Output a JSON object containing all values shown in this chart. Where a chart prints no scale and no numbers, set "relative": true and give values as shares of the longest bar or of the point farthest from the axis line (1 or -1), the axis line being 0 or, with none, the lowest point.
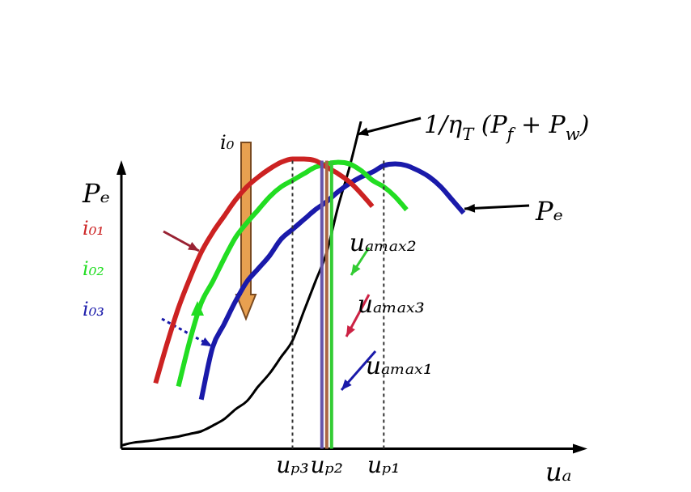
{
  "chart_data": {
    "type": "line",
    "relative": true,
    "xlabel": "uₐ",
    "ylabel": "Pₑ",
    "categories": [
      null,
      null,
      null,
      null,
      null,
      null,
      null,
      null,
      null,
      null,
      null,
      null,
      null,
      null,
      null,
      "uₚ₃",
      null,
      null,
      "uₚ₂",
      null,
      null,
      null,
      null,
      "uₚ₁",
      null,
      null,
      null,
      null,
      null,
      null,
      null,
      null,
      null,
      null,
      null,
      null,
      null,
      null,
      null,
      null,
      null
    ],
    "series": [
      {
        "name": "i₀₁",
        "color": "#cc2222",
        "values": [
          null,
          null,
          null,
          0.2,
          0.32,
          0.43,
          0.52,
          0.6,
          0.66,
          0.71,
          0.76,
          0.8,
          0.83,
          0.855,
          0.875,
          0.885,
          0.885,
          0.88,
          0.86,
          0.84,
          0.815,
          0.78,
          0.74,
          null,
          null,
          null,
          null,
          null,
          null,
          null,
          null,
          null,
          null,
          null,
          null,
          null,
          null,
          null,
          null,
          null,
          null
        ]
      },
      {
        "name": "i₀₂",
        "color": "#22dd22",
        "values": [
          null,
          null,
          null,
          null,
          null,
          0.19,
          0.33,
          0.445,
          0.51,
          0.58,
          0.645,
          0.69,
          0.73,
          0.77,
          0.8,
          0.82,
          0.84,
          0.86,
          0.87,
          0.875,
          0.87,
          0.85,
          0.82,
          0.8,
          0.77,
          0.73,
          null,
          null,
          null,
          null,
          null,
          null,
          null,
          null,
          null,
          null,
          null,
          null,
          null,
          null,
          null
        ]
      },
      {
        "name": "i₀₃",
        "color": "#1a1aaa",
        "values": [
          null,
          null,
          null,
          null,
          null,
          null,
          null,
          0.15,
          0.31,
          0.38,
          0.45,
          0.51,
          0.55,
          0.59,
          0.64,
          0.67,
          0.7,
          0.73,
          0.755,
          0.785,
          0.81,
          0.83,
          0.845,
          0.865,
          0.87,
          0.865,
          0.85,
          0.83,
          0.8,
          0.76,
          0.72,
          null,
          null,
          null,
          null,
          null,
          null,
          null,
          null,
          null,
          null
        ]
      },
      {
        "color": "#000000",
        "values": [
          0.01,
          0.018,
          0.022,
          0.026,
          0.032,
          0.037,
          0.045,
          0.053,
          0.07,
          0.09,
          0.12,
          0.145,
          0.19,
          0.23,
          0.28,
          0.33,
          0.42,
          0.51,
          0.6,
          0.74,
          0.86,
          1.0,
          null,
          null,
          null,
          null,
          null,
          null,
          null,
          null,
          null,
          null,
          null,
          null,
          null,
          null,
          null,
          null,
          null,
          null,
          null
        ]
      }
    ],
    "ref_lines": [
      {
        "axis": "x",
        "value": "uₚ₃",
        "line_style": "dotted",
        "color": "#333333"
      },
      {
        "axis": "x",
        "value": "uₚ₁",
        "line_style": "dotted",
        "color": "#333333"
      },
      {
        "axis": "x",
        "value": "uₚ₂",
        "label": "uₐₘₐₓ₂",
        "color": "#33cc33",
        "line_style": "solid"
      },
      {
        "axis": "x",
        "value": "uₚ₂",
        "label": "uₐₘₐₓ₃",
        "color": "#aa6644",
        "line_style": "solid"
      },
      {
        "axis": "x",
        "value": "uₚ₂",
        "label": "uₐₘₐₓ₁",
        "color": "#6655aa",
        "line_style": "solid"
      }
    ],
    "annotations": [
      "1/η$_{T}$ (P$_{f}$ + P$_{w}$)",
      "Pₑ",
      "i₀"
    ],
    "legend": false,
    "grid": false,
    "marker": "none",
    "line_style": "solid"
  }
}
